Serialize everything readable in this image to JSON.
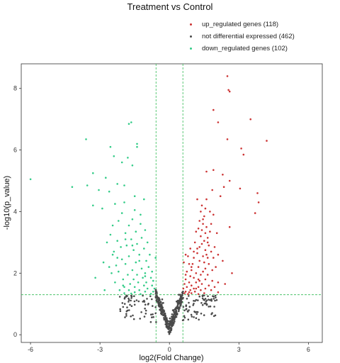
{
  "chart_data": {
    "type": "scatter",
    "title": "Treatment vs Control",
    "xlabel": "log2(Fold Change)",
    "ylabel": "-log10(p_value)",
    "xlim": [
      -6.4,
      6.6
    ],
    "ylim": [
      -0.25,
      8.8
    ],
    "xticks": [
      -6,
      -3,
      0,
      3,
      6
    ],
    "yticks": [
      0,
      2,
      4,
      6,
      8
    ],
    "xtick_labels": [
      "-6",
      "-3",
      "0",
      "3",
      "6"
    ],
    "ytick_labels": [
      "0",
      "2",
      "4",
      "6",
      "8"
    ],
    "grid": false,
    "legend_position": "top-right",
    "thresholds": {
      "x": [
        -0.58,
        0.58
      ],
      "y": 1.3,
      "color": "#33bb55"
    },
    "series": [
      {
        "name": "up_regulated genes (118)",
        "color": "#cc3333",
        "points": [
          [
            2.5,
            8.4
          ],
          [
            2.55,
            7.95
          ],
          [
            2.6,
            7.9
          ],
          [
            1.9,
            7.3
          ],
          [
            3.5,
            7.0
          ],
          [
            2.1,
            6.9
          ],
          [
            2.5,
            6.35
          ],
          [
            3.1,
            6.05
          ],
          [
            3.2,
            5.85
          ],
          [
            4.2,
            6.3
          ],
          [
            1.6,
            5.3
          ],
          [
            1.9,
            5.35
          ],
          [
            2.3,
            5.2
          ],
          [
            2.6,
            5.0
          ],
          [
            1.85,
            4.7
          ],
          [
            2.35,
            4.8
          ],
          [
            3.05,
            4.75
          ],
          [
            3.8,
            4.6
          ],
          [
            3.85,
            4.3
          ],
          [
            3.7,
            3.95
          ],
          [
            2.6,
            3.5
          ],
          [
            1.2,
            4.4
          ],
          [
            1.4,
            4.2
          ],
          [
            1.35,
            4.0
          ],
          [
            1.55,
            4.1
          ],
          [
            1.5,
            3.85
          ],
          [
            1.3,
            3.7
          ],
          [
            1.45,
            3.6
          ],
          [
            1.6,
            3.5
          ],
          [
            1.25,
            3.45
          ],
          [
            1.55,
            3.3
          ],
          [
            1.35,
            3.2
          ],
          [
            1.65,
            3.15
          ],
          [
            1.5,
            3.05
          ],
          [
            1.4,
            2.95
          ],
          [
            1.7,
            2.9
          ],
          [
            1.3,
            2.85
          ],
          [
            1.55,
            2.75
          ],
          [
            1.8,
            2.7
          ],
          [
            1.1,
            3.0
          ],
          [
            1.2,
            2.65
          ],
          [
            1.45,
            2.55
          ],
          [
            1.65,
            2.5
          ],
          [
            2.1,
            2.6
          ],
          [
            1.05,
            2.5
          ],
          [
            1.3,
            2.4
          ],
          [
            1.5,
            2.35
          ],
          [
            1.0,
            2.3
          ],
          [
            1.7,
            2.3
          ],
          [
            0.85,
            2.3
          ],
          [
            1.25,
            2.2
          ],
          [
            1.55,
            2.15
          ],
          [
            0.95,
            2.1
          ],
          [
            1.45,
            2.05
          ],
          [
            1.85,
            2.1
          ],
          [
            0.75,
            2.05
          ],
          [
            1.15,
            2.0
          ],
          [
            1.35,
            1.95
          ],
          [
            1.65,
            1.95
          ],
          [
            0.9,
            1.9
          ],
          [
            1.05,
            1.85
          ],
          [
            1.25,
            1.8
          ],
          [
            1.55,
            1.8
          ],
          [
            0.7,
            1.8
          ],
          [
            1.85,
            1.75
          ],
          [
            0.85,
            1.7
          ],
          [
            1.15,
            1.7
          ],
          [
            1.4,
            1.65
          ],
          [
            1.7,
            1.6
          ],
          [
            0.65,
            1.65
          ],
          [
            0.95,
            1.6
          ],
          [
            1.25,
            1.55
          ],
          [
            2.1,
            1.7
          ],
          [
            0.75,
            1.55
          ],
          [
            1.05,
            1.5
          ],
          [
            1.55,
            1.5
          ],
          [
            0.6,
            1.5
          ],
          [
            0.9,
            1.45
          ],
          [
            1.35,
            1.45
          ],
          [
            1.8,
            1.45
          ],
          [
            0.7,
            1.4
          ],
          [
            1.1,
            1.4
          ],
          [
            1.5,
            1.35
          ],
          [
            0.65,
            1.35
          ],
          [
            0.95,
            1.35
          ],
          [
            2.1,
            1.38
          ],
          [
            1.25,
            1.32
          ],
          [
            0.8,
            1.32
          ],
          [
            2.0,
            2.2
          ],
          [
            2.3,
            2.4
          ],
          [
            1.95,
            2.85
          ],
          [
            1.75,
            4.0
          ],
          [
            2.05,
            3.3
          ],
          [
            1.6,
            4.4
          ],
          [
            1.15,
            3.35
          ],
          [
            1.4,
            3.4
          ],
          [
            0.8,
            2.55
          ],
          [
            0.9,
            2.8
          ],
          [
            1.2,
            2.8
          ],
          [
            0.7,
            2.6
          ],
          [
            1.95,
            1.55
          ],
          [
            0.95,
            2.2
          ],
          [
            1.8,
            3.6
          ],
          [
            1.65,
            3.0
          ],
          [
            1.9,
            3.9
          ],
          [
            1.15,
            1.5
          ],
          [
            0.7,
            1.95
          ],
          [
            2.2,
            4.5
          ],
          [
            1.75,
            3.35
          ],
          [
            1.05,
            2.7
          ],
          [
            0.85,
            1.38
          ],
          [
            1.6,
            2.6
          ],
          [
            2.4,
            1.65
          ],
          [
            1.3,
            1.75
          ],
          [
            0.62,
            2.35
          ],
          [
            1.9,
            2.5
          ],
          [
            1.45,
            3.75
          ],
          [
            2.7,
            2.0
          ]
        ]
      },
      {
        "name": "not differential expressed (462)",
        "color": "#4a4a4a",
        "points": "generated"
      },
      {
        "name": "down_regulated genes (102)",
        "color": "#33cc88",
        "points": [
          [
            -6.0,
            5.05
          ],
          [
            -4.2,
            4.8
          ],
          [
            -3.6,
            6.35
          ],
          [
            -3.3,
            5.25
          ],
          [
            -3.05,
            4.7
          ],
          [
            -2.75,
            5.1
          ],
          [
            -2.55,
            6.1
          ],
          [
            -1.65,
            6.9
          ],
          [
            -1.75,
            6.85
          ],
          [
            -1.4,
            6.2
          ],
          [
            -1.4,
            6.1
          ],
          [
            -1.8,
            5.75
          ],
          [
            -2.05,
            5.6
          ],
          [
            -1.6,
            5.5
          ],
          [
            -2.4,
            5.8
          ],
          [
            -3.55,
            4.85
          ],
          [
            -2.25,
            4.9
          ],
          [
            -1.95,
            4.85
          ],
          [
            -2.6,
            4.65
          ],
          [
            -3.3,
            4.2
          ],
          [
            -1.1,
            4.4
          ],
          [
            -1.95,
            4.3
          ],
          [
            -2.35,
            4.25
          ],
          [
            -1.5,
            4.05
          ],
          [
            -2.05,
            3.95
          ],
          [
            -2.9,
            4.1
          ],
          [
            -1.6,
            3.75
          ],
          [
            -2.2,
            3.7
          ],
          [
            -1.25,
            3.6
          ],
          [
            -1.75,
            3.55
          ],
          [
            -2.45,
            3.55
          ],
          [
            -1.05,
            3.4
          ],
          [
            -1.45,
            3.35
          ],
          [
            -1.9,
            3.3
          ],
          [
            -2.55,
            3.25
          ],
          [
            -1.2,
            3.15
          ],
          [
            -1.65,
            3.1
          ],
          [
            -2.25,
            3.05
          ],
          [
            -0.95,
            3.0
          ],
          [
            -1.4,
            2.95
          ],
          [
            -1.85,
            2.9
          ],
          [
            -2.1,
            2.85
          ],
          [
            -1.1,
            2.8
          ],
          [
            -1.55,
            2.75
          ],
          [
            -2.4,
            2.7
          ],
          [
            -0.85,
            2.6
          ],
          [
            -1.3,
            2.6
          ],
          [
            -1.75,
            2.55
          ],
          [
            -2.05,
            2.45
          ],
          [
            -1.0,
            2.4
          ],
          [
            -1.45,
            2.35
          ],
          [
            -1.9,
            2.3
          ],
          [
            -2.3,
            2.25
          ],
          [
            -0.9,
            2.2
          ],
          [
            -1.2,
            2.15
          ],
          [
            -1.6,
            2.1
          ],
          [
            -2.2,
            2.05
          ],
          [
            -0.75,
            2.05
          ],
          [
            -1.05,
            2.0
          ],
          [
            -1.4,
            1.95
          ],
          [
            -1.8,
            1.95
          ],
          [
            -2.5,
            2.0
          ],
          [
            -0.8,
            1.85
          ],
          [
            -1.15,
            1.85
          ],
          [
            -1.55,
            1.8
          ],
          [
            -2.0,
            1.8
          ],
          [
            -0.7,
            1.75
          ],
          [
            -1.0,
            1.7
          ],
          [
            -1.35,
            1.7
          ],
          [
            -1.7,
            1.65
          ],
          [
            -2.35,
            1.7
          ],
          [
            -0.75,
            1.6
          ],
          [
            -1.1,
            1.6
          ],
          [
            -1.5,
            1.55
          ],
          [
            -1.95,
            1.55
          ],
          [
            -3.2,
            1.85
          ],
          [
            -0.65,
            1.5
          ],
          [
            -0.95,
            1.5
          ],
          [
            -1.3,
            1.45
          ],
          [
            -1.75,
            1.45
          ],
          [
            -2.15,
            1.45
          ],
          [
            -0.7,
            1.4
          ],
          [
            -1.05,
            1.4
          ],
          [
            -1.5,
            1.38
          ],
          [
            -1.95,
            1.35
          ],
          [
            -2.8,
            1.45
          ],
          [
            -0.8,
            1.33
          ],
          [
            -1.25,
            1.32
          ],
          [
            -1.65,
            1.34
          ],
          [
            -2.0,
            1.6
          ],
          [
            -2.6,
            2.2
          ],
          [
            -1.3,
            2.4
          ],
          [
            -0.6,
            2.5
          ],
          [
            -2.7,
            3.0
          ],
          [
            -1.5,
            4.5
          ],
          [
            -1.9,
            3.1
          ],
          [
            -1.25,
            3.9
          ],
          [
            -2.25,
            2.5
          ],
          [
            -2.45,
            2.6
          ],
          [
            -1.6,
            2.9
          ],
          [
            -2.85,
            2.35
          ],
          [
            -1.05,
            1.9
          ]
        ]
      }
    ]
  }
}
